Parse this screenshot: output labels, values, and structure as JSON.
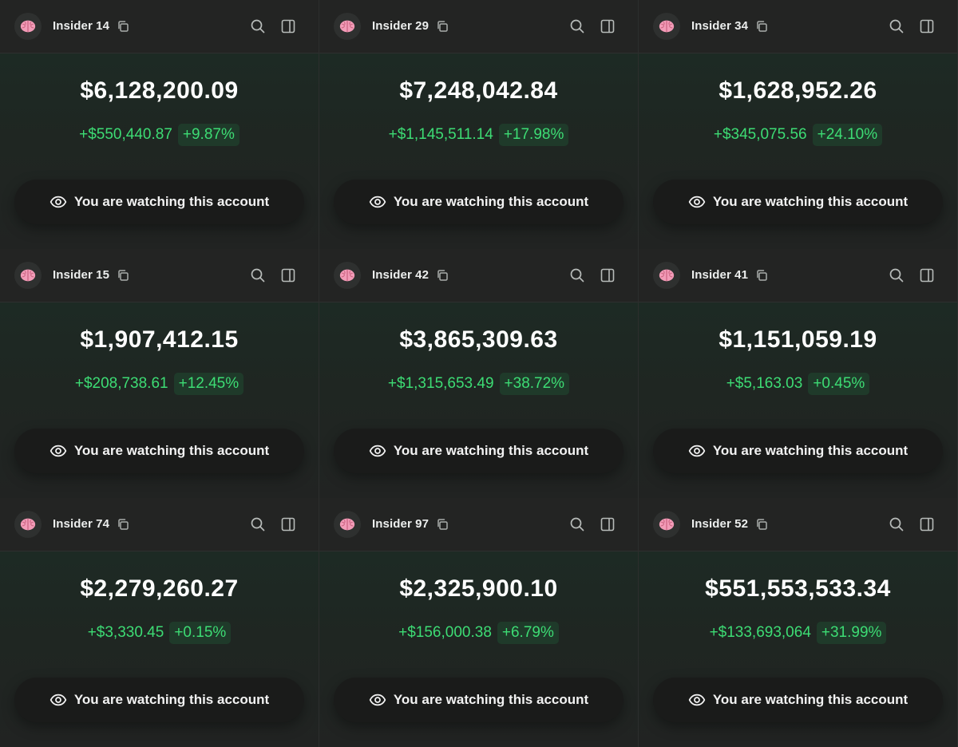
{
  "watch_label": "You are watching this account",
  "colors": {
    "gain": "#3ddc74",
    "gain_bg": "#1f3a2a",
    "text": "#ffffff"
  },
  "icons": {
    "avatar": "brain-icon",
    "copy": "copy-icon",
    "search": "search-icon",
    "sidebar": "sidebar-toggle-icon",
    "watch": "eye-icon"
  },
  "accounts": [
    {
      "name": "Insider 14",
      "balance": "$6,128,200.09",
      "change": "+$550,440.87",
      "pct": "+9.87%"
    },
    {
      "name": "Insider 29",
      "balance": "$7,248,042.84",
      "change": "+$1,145,511.14",
      "pct": "+17.98%"
    },
    {
      "name": "Insider 34",
      "balance": "$1,628,952.26",
      "change": "+$345,075.56",
      "pct": "+24.10%"
    },
    {
      "name": "Insider 15",
      "balance": "$1,907,412.15",
      "change": "+$208,738.61",
      "pct": "+12.45%"
    },
    {
      "name": "Insider 42",
      "balance": "$3,865,309.63",
      "change": "+$1,315,653.49",
      "pct": "+38.72%"
    },
    {
      "name": "Insider 41",
      "balance": "$1,151,059.19",
      "change": "+$5,163.03",
      "pct": "+0.45%"
    },
    {
      "name": "Insider 74",
      "balance": "$2,279,260.27",
      "change": "+$3,330.45",
      "pct": "+0.15%"
    },
    {
      "name": "Insider 97",
      "balance": "$2,325,900.10",
      "change": "+$156,000.38",
      "pct": "+6.79%"
    },
    {
      "name": "Insider 52",
      "balance": "$551,553,533.34",
      "change": "+$133,693,064",
      "pct": "+31.99%"
    }
  ]
}
